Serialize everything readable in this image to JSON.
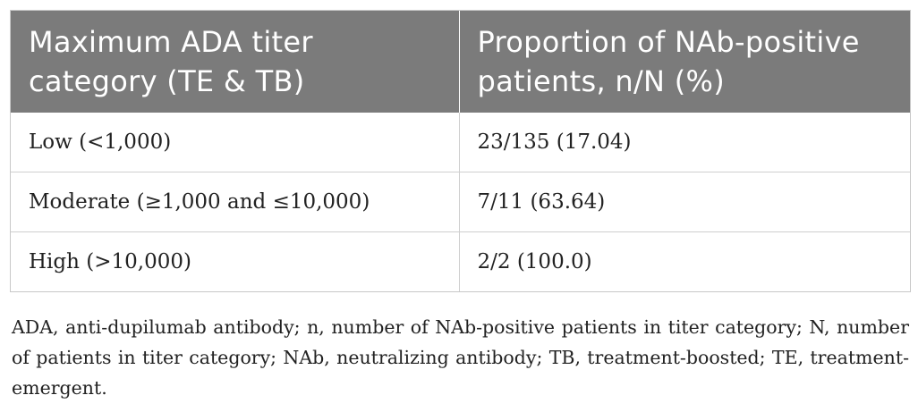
{
  "table": {
    "headers": [
      "Maximum ADA titer category (TE & TB)",
      "Proportion of NAb-positive patients, n/N (%)"
    ],
    "rows": [
      [
        "Low (<1,000)",
        "23/135 (17.04)"
      ],
      [
        "Moderate (≥1,000 and ≤10,000)",
        "7/11 (63.64)"
      ],
      [
        "High (>10,000)",
        "2/2 (100.0)"
      ]
    ]
  },
  "footnote": "ADA, anti-dupilumab antibody; n, number of NAb-positive patients in titer category; N, number of patients in titer category; NAb, neutralizing antibody; TB, treatment-boosted; TE, treatment-emergent.",
  "colors": {
    "header_bg": "#7b7b7b",
    "header_text": "#ffffff",
    "border": "#cfcfcf"
  }
}
